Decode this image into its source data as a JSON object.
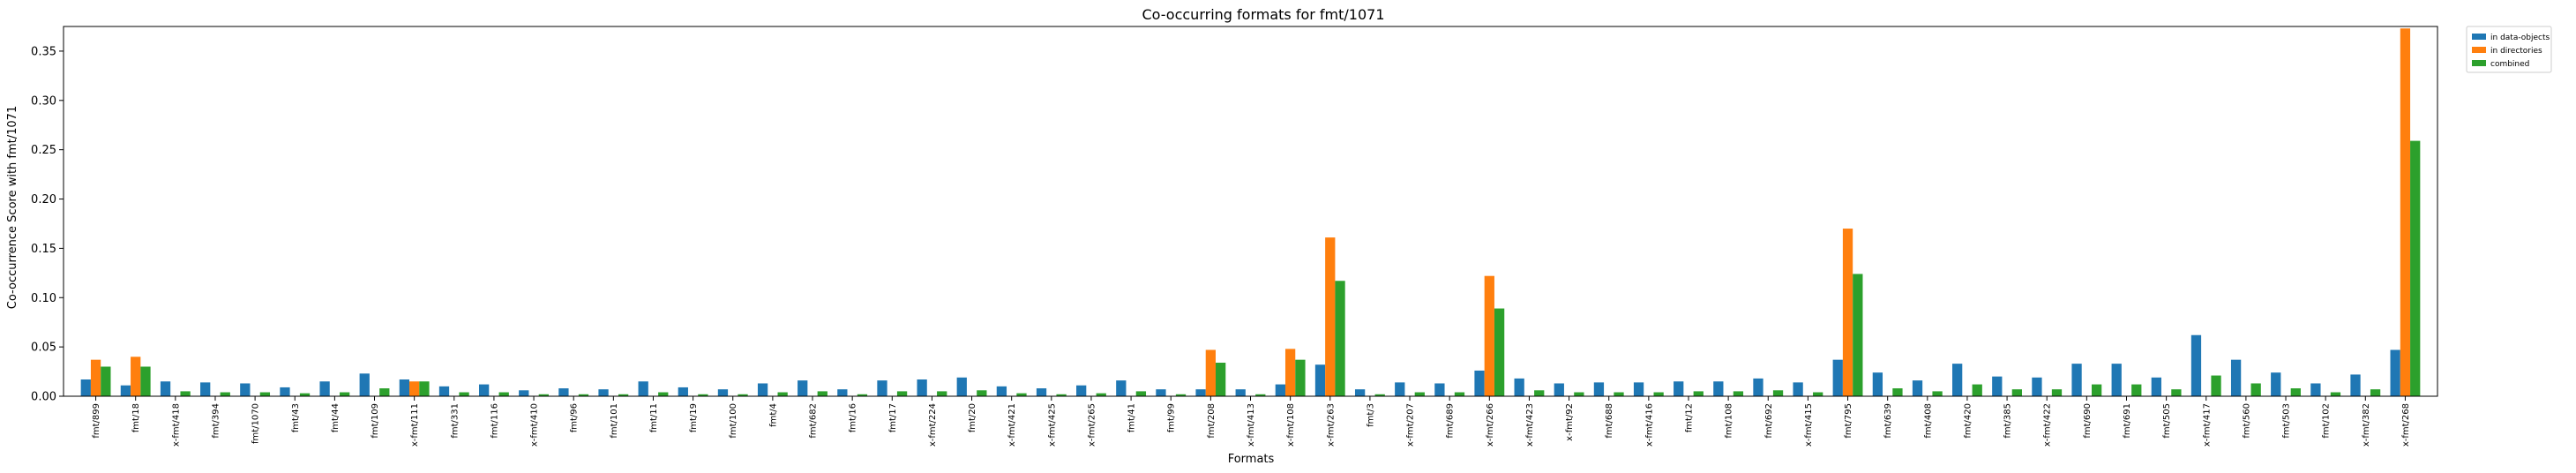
{
  "chart_data": {
    "type": "bar",
    "title": "Co-occurring formats for fmt/1071",
    "xlabel": "Formats",
    "ylabel": "Co-occurrence Score with fmt/1071",
    "ylim": [
      0,
      0.375
    ],
    "yticks": [
      0.0,
      0.05,
      0.1,
      0.15,
      0.2,
      0.25,
      0.3,
      0.35
    ],
    "grid": false,
    "legend_placement": "outside-top-right",
    "categories": [
      "fmt/899",
      "fmt/18",
      "x-fmt/418",
      "fmt/394",
      "fmt/1070",
      "fmt/43",
      "fmt/44",
      "fmt/109",
      "x-fmt/111",
      "fmt/331",
      "fmt/116",
      "x-fmt/410",
      "fmt/96",
      "fmt/101",
      "fmt/11",
      "fmt/19",
      "fmt/100",
      "fmt/4",
      "fmt/682",
      "fmt/16",
      "fmt/17",
      "x-fmt/224",
      "fmt/20",
      "x-fmt/421",
      "x-fmt/425",
      "x-fmt/265",
      "fmt/41",
      "fmt/99",
      "fmt/208",
      "x-fmt/413",
      "x-fmt/108",
      "x-fmt/263",
      "fmt/3",
      "x-fmt/207",
      "fmt/689",
      "x-fmt/266",
      "x-fmt/423",
      "x-fmt/92",
      "fmt/688",
      "x-fmt/416",
      "fmt/12",
      "fmt/108",
      "fmt/692",
      "x-fmt/415",
      "fmt/795",
      "fmt/639",
      "fmt/408",
      "fmt/420",
      "fmt/385",
      "x-fmt/422",
      "fmt/690",
      "fmt/691",
      "fmt/505",
      "x-fmt/417",
      "fmt/560",
      "fmt/503",
      "fmt/102",
      "x-fmt/382",
      "x-fmt/268"
    ],
    "series": [
      {
        "name": "in data-objects",
        "color": "#1f77b4",
        "values": [
          0.017,
          0.011,
          0.015,
          0.014,
          0.013,
          0.009,
          0.015,
          0.023,
          0.017,
          0.01,
          0.012,
          0.006,
          0.008,
          0.007,
          0.015,
          0.009,
          0.007,
          0.013,
          0.016,
          0.007,
          0.016,
          0.017,
          0.019,
          0.01,
          0.008,
          0.011,
          0.016,
          0.007,
          0.007,
          0.007,
          0.012,
          0.032,
          0.007,
          0.014,
          0.013,
          0.026,
          0.018,
          0.013,
          0.014,
          0.014,
          0.015,
          0.015,
          0.018,
          0.014,
          0.037,
          0.024,
          0.016,
          0.033,
          0.02,
          0.019,
          0.033,
          0.033,
          0.019,
          0.062,
          0.037,
          0.024,
          0.013,
          0.022,
          0.047
        ]
      },
      {
        "name": "in directories",
        "color": "#ff7f0e",
        "values": [
          0.037,
          0.04,
          0,
          0,
          0,
          0,
          0,
          0,
          0.015,
          0,
          0,
          0,
          0,
          0,
          0,
          0,
          0,
          0,
          0,
          0,
          0,
          0,
          0,
          0,
          0,
          0,
          0,
          0,
          0.047,
          0,
          0.048,
          0.161,
          0,
          0,
          0,
          0.122,
          0,
          0,
          0,
          0,
          0,
          0,
          0,
          0,
          0.17,
          0,
          0,
          0,
          0,
          0,
          0,
          0,
          0,
          0,
          0,
          0,
          0,
          0,
          0.373
        ]
      },
      {
        "name": "combined",
        "color": "#2ca02c",
        "values": [
          0.03,
          0.03,
          0.005,
          0.004,
          0.004,
          0.003,
          0.004,
          0.008,
          0.015,
          0.004,
          0.004,
          0.002,
          0.002,
          0.002,
          0.004,
          0.002,
          0.002,
          0.004,
          0.005,
          0.002,
          0.005,
          0.005,
          0.006,
          0.003,
          0.002,
          0.003,
          0.005,
          0.002,
          0.034,
          0.002,
          0.037,
          0.117,
          0.002,
          0.004,
          0.004,
          0.089,
          0.006,
          0.004,
          0.004,
          0.004,
          0.005,
          0.005,
          0.006,
          0.004,
          0.124,
          0.008,
          0.005,
          0.012,
          0.007,
          0.007,
          0.012,
          0.012,
          0.007,
          0.021,
          0.013,
          0.008,
          0.004,
          0.007,
          0.259
        ]
      }
    ]
  }
}
